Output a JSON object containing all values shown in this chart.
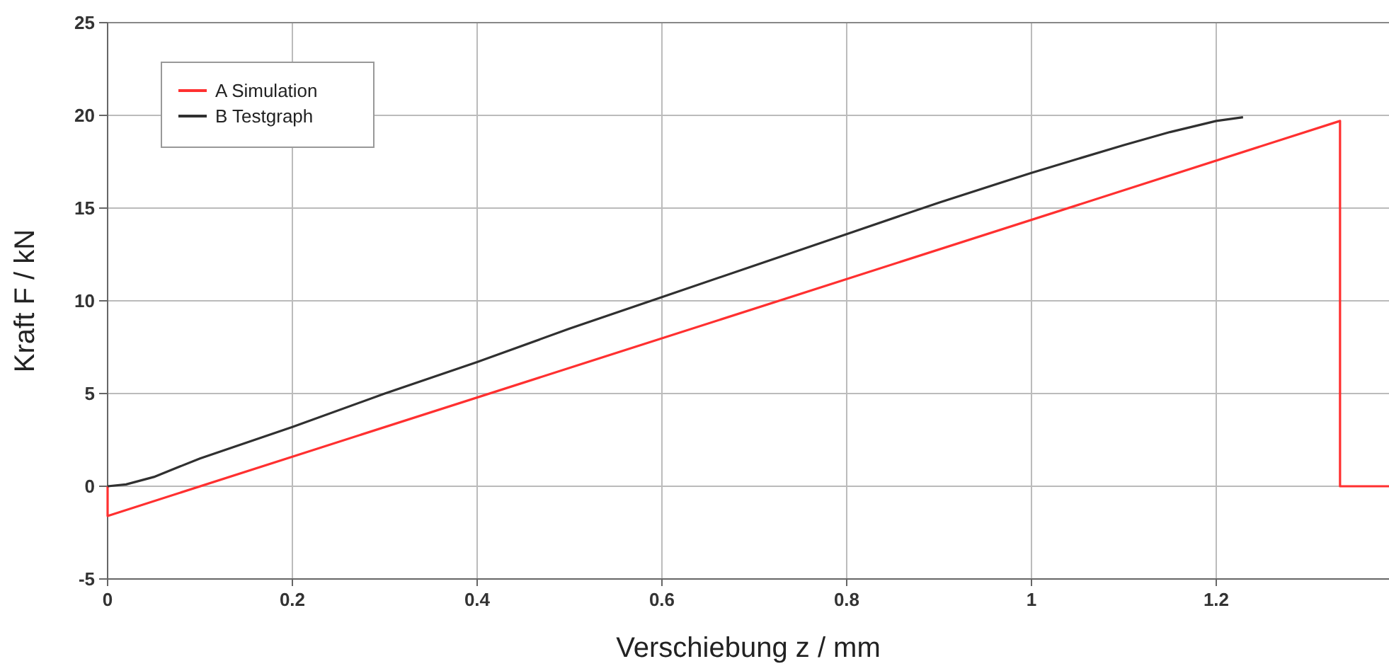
{
  "chart_data": {
    "type": "line",
    "xlabel": "Verschiebung z / mm",
    "ylabel": "Kraft F / kN",
    "xlim": [
      0,
      1.387
    ],
    "xticks": [
      0,
      0.2,
      0.4,
      0.6,
      0.8,
      1,
      1.2
    ],
    "ylim": [
      -5,
      25
    ],
    "yticks": [
      -5,
      0,
      5,
      10,
      15,
      20,
      25
    ],
    "grid": true,
    "legend": "top left",
    "marker": "none",
    "line_style": "solid",
    "series": [
      {
        "name": "A Simulation",
        "color": "#ff3030",
        "x": [
          0,
          0,
          1.334,
          1.334,
          1.387
        ],
        "values": [
          0,
          -1.6,
          19.7,
          0,
          0
        ]
      },
      {
        "name": "B Testgraph",
        "color": "#303030",
        "x": [
          0,
          0.02,
          0.05,
          0.1,
          0.2,
          0.3,
          0.4,
          0.5,
          0.6,
          0.7,
          0.8,
          0.9,
          1.0,
          1.1,
          1.15,
          1.2,
          1.229
        ],
        "values": [
          0,
          0.1,
          0.5,
          1.5,
          3.2,
          5.0,
          6.7,
          8.5,
          10.2,
          11.9,
          13.6,
          15.3,
          16.9,
          18.4,
          19.1,
          19.7,
          19.9
        ]
      }
    ]
  }
}
